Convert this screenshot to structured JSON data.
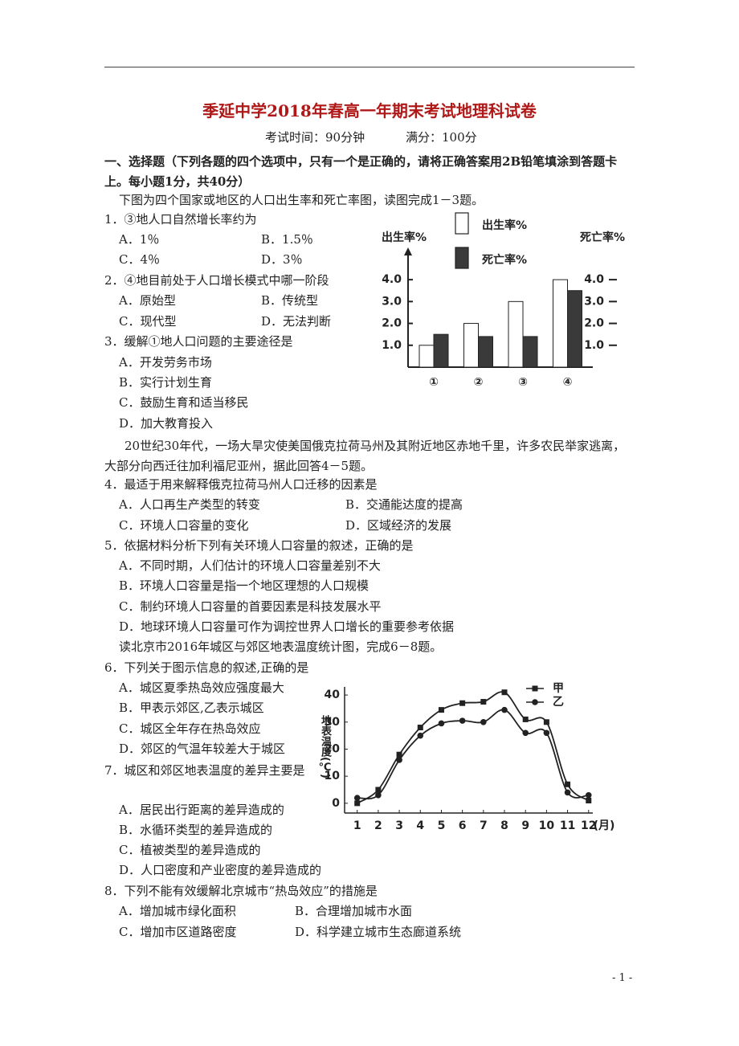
{
  "header": {
    "title": "季延中学2018年春高一年期末考试地理科试卷",
    "time": "考试时间：90分钟",
    "score": "满分：100分"
  },
  "section_title": "一、选择题（下列各题的四个选项中，只有一个是正确的，请将正确答案用2B铅笔填涂到答题卡上。每小题1分，共40分）",
  "intros": [
    "下图为四个国家或地区的人口出生率和死亡率图，读图完成1－3题。",
    "20世纪30年代，一场大旱灾使美国俄克拉荷马州及其附近地区赤地千里，许多农民举家逃离，大部分向西迁往加利福尼亚州，据此回答4－5题。",
    "读北京市2016年城区与郊区地表温度统计图，完成6－8题。"
  ],
  "questions": [
    {
      "stem": "1．③地人口自然增长率约为",
      "options": [
        "A．1％",
        "B．1.5％",
        "C．4％",
        "D．3％"
      ]
    },
    {
      "stem": "2．④地目前处于人口增长模式中哪一阶段",
      "options": [
        "A．原始型",
        "B．传统型",
        "C．现代型",
        "D．无法判断"
      ]
    },
    {
      "stem": "3．缓解①地人口问题的主要途径是",
      "options": [
        "A．开发劳务市场",
        "B．实行计划生育",
        "C．鼓励生育和适当移民",
        "D．加大教育投入"
      ]
    },
    {
      "stem": "4．最适于用来解释俄克拉荷马州人口迁移的因素是",
      "options": [
        "A．人口再生产类型的转变",
        "B．交通能达度的提高",
        "C．环境人口容量的变化",
        "D．区域经济的发展"
      ]
    },
    {
      "stem": "5．依据材料分析下列有关环境人口容量的叙述，正确的是",
      "options": [
        "A．不同时期，人们估计的环境人口容量差别不大",
        "B．环境人口容量是指一个地区理想的人口规模",
        "C．制约环境人口容量的首要因素是科技发展水平",
        "D．地球环境人口容量可作为调控世界人口增长的重要参考依据"
      ]
    },
    {
      "stem": "6．下列关于图示信息的叙述,正确的是",
      "options": [
        "A．城区夏季热岛效应强度最大",
        "B．甲表示郊区,乙表示城区",
        "C．城区全年存在热岛效应",
        "D．郊区的气温年较差大于城区"
      ]
    },
    {
      "stem": "7．城区和郊区地表温度的差异主要是",
      "options": [
        "A．居民出行距离的差异造成的",
        "B．水循环类型的差异造成的",
        "C．植被类型的差异造成的",
        "D．人口密度和产业密度的差异造成的"
      ]
    },
    {
      "stem": "8．下列不能有效缓解北京城市“热岛效应”的措施是",
      "options": [
        "A．增加城市绿化面积",
        "B．合理增加城市水面",
        "C．增加市区道路密度",
        "D．科学建立城市生态廊道系统"
      ]
    }
  ],
  "footer": "- 1 -",
  "chart_data": [
    {
      "type": "bar",
      "y_label": "出生率%",
      "y2_label": "死亡率%",
      "categories": [
        "①",
        "②",
        "③",
        "④"
      ],
      "series": [
        {
          "name": "出生率%",
          "color": "#ffffff",
          "values": [
            1.0,
            2.0,
            3.0,
            4.0
          ]
        },
        {
          "name": "死亡率%",
          "color": "#3a3a3a",
          "axis": "y2",
          "values": [
            1.5,
            1.4,
            1.4,
            3.5
          ]
        }
      ],
      "ylim": [
        0,
        5.4
      ],
      "yticks": [
        {
          "value": 1,
          "label": "1.0"
        },
        {
          "value": 2,
          "label": "2.0"
        },
        {
          "value": 3,
          "label": "3.0"
        },
        {
          "value": 4,
          "label": "4.0"
        }
      ],
      "y2lim": [
        0,
        5.4
      ],
      "y2ticks": [
        {
          "value": 1,
          "label": "1.0"
        },
        {
          "value": 2,
          "label": "2.0"
        },
        {
          "value": 3,
          "label": "3.0"
        },
        {
          "value": 4,
          "label": "4.0"
        }
      ]
    },
    {
      "type": "line",
      "y_label": "地表温度(℃)",
      "x_label": "(月)",
      "x": [
        1,
        2,
        3,
        4,
        5,
        6,
        7,
        8,
        9,
        10,
        11,
        12
      ],
      "series": [
        {
          "name": "甲",
          "marker": "square",
          "color": "#222222",
          "values": [
            0,
            5,
            18,
            28,
            34.5,
            37,
            37.5,
            41,
            31,
            30,
            7,
            1
          ]
        },
        {
          "name": "乙",
          "marker": "circle",
          "color": "#222222",
          "values": [
            2,
            3,
            16,
            25,
            29.5,
            30.5,
            30,
            34.5,
            26,
            26,
            4,
            3
          ]
        }
      ],
      "xlim": [
        0.4,
        12.2
      ],
      "ylim": [
        -3.6,
        43
      ],
      "xticks": [
        1,
        2,
        3,
        4,
        5,
        6,
        7,
        8,
        9,
        10,
        11,
        12
      ],
      "yticks": [
        0,
        10,
        20,
        30,
        40
      ]
    }
  ]
}
